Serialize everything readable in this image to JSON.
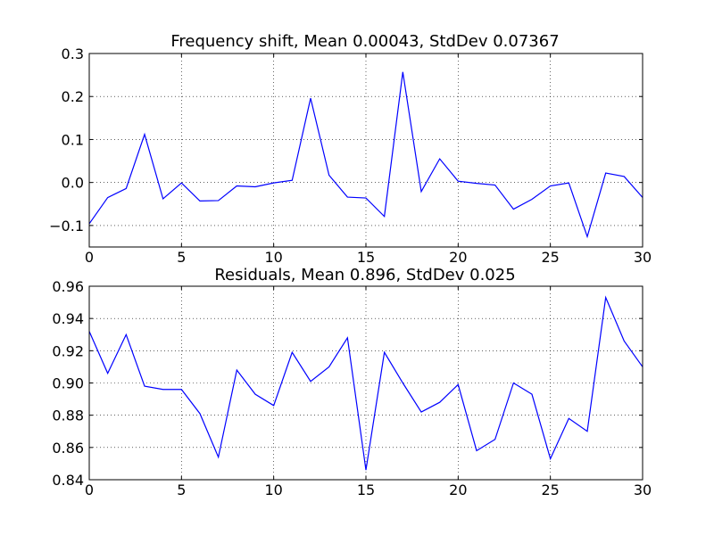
{
  "colors": {
    "line": "#0000ff",
    "grid": "#000000",
    "axes": "#000000",
    "background": "#ffffff"
  },
  "chart_data": [
    {
      "type": "line",
      "title": "Frequency shift, Mean 0.00043, StdDev 0.07367",
      "xlabel": "",
      "ylabel": "",
      "grid": true,
      "xlim": [
        0,
        30
      ],
      "ylim": [
        -0.15,
        0.3
      ],
      "x_ticks": [
        0,
        5,
        10,
        15,
        20,
        25,
        30
      ],
      "x_tick_labels": [
        "0",
        "5",
        "10",
        "15",
        "20",
        "25",
        "30"
      ],
      "y_ticks": [
        -0.1,
        0.0,
        0.1,
        0.2,
        0.3
      ],
      "y_tick_labels": [
        "−0.1",
        "0.0",
        "0.1",
        "0.2",
        "0.3"
      ],
      "series": [
        {
          "x": [
            0,
            1,
            2,
            3,
            4,
            5,
            6,
            7,
            8,
            9,
            10,
            11,
            12,
            13,
            14,
            15,
            16,
            17,
            18,
            19,
            20,
            21,
            22,
            23,
            24,
            25,
            26,
            27,
            28,
            29,
            30
          ],
          "values": [
            -0.096,
            -0.035,
            -0.014,
            0.112,
            -0.038,
            -0.001,
            -0.043,
            -0.042,
            -0.008,
            -0.01,
            -0.001,
            0.005,
            0.196,
            0.017,
            -0.034,
            -0.036,
            -0.079,
            0.257,
            -0.021,
            0.055,
            0.003,
            -0.002,
            -0.006,
            -0.062,
            -0.039,
            -0.008,
            -0.001,
            -0.126,
            0.022,
            0.014,
            -0.035
          ]
        }
      ]
    },
    {
      "type": "line",
      "title": "Residuals, Mean 0.896, StdDev 0.025",
      "xlabel": "",
      "ylabel": "",
      "grid": true,
      "xlim": [
        0,
        30
      ],
      "ylim": [
        0.84,
        0.96
      ],
      "x_ticks": [
        0,
        5,
        10,
        15,
        20,
        25,
        30
      ],
      "x_tick_labels": [
        "0",
        "5",
        "10",
        "15",
        "20",
        "25",
        "30"
      ],
      "y_ticks": [
        0.84,
        0.86,
        0.88,
        0.9,
        0.92,
        0.94,
        0.96
      ],
      "y_tick_labels": [
        "0.84",
        "0.86",
        "0.88",
        "0.90",
        "0.92",
        "0.94",
        "0.96"
      ],
      "series": [
        {
          "x": [
            0,
            1,
            2,
            3,
            4,
            5,
            6,
            7,
            8,
            9,
            10,
            11,
            12,
            13,
            14,
            15,
            16,
            17,
            18,
            19,
            20,
            21,
            22,
            23,
            24,
            25,
            26,
            27,
            28,
            29,
            30
          ],
          "values": [
            0.932,
            0.906,
            0.93,
            0.898,
            0.896,
            0.896,
            0.881,
            0.854,
            0.908,
            0.893,
            0.886,
            0.919,
            0.901,
            0.91,
            0.928,
            0.846,
            0.919,
            0.9,
            0.882,
            0.888,
            0.899,
            0.858,
            0.865,
            0.9,
            0.893,
            0.853,
            0.878,
            0.87,
            0.953,
            0.926,
            0.91
          ]
        }
      ]
    }
  ]
}
